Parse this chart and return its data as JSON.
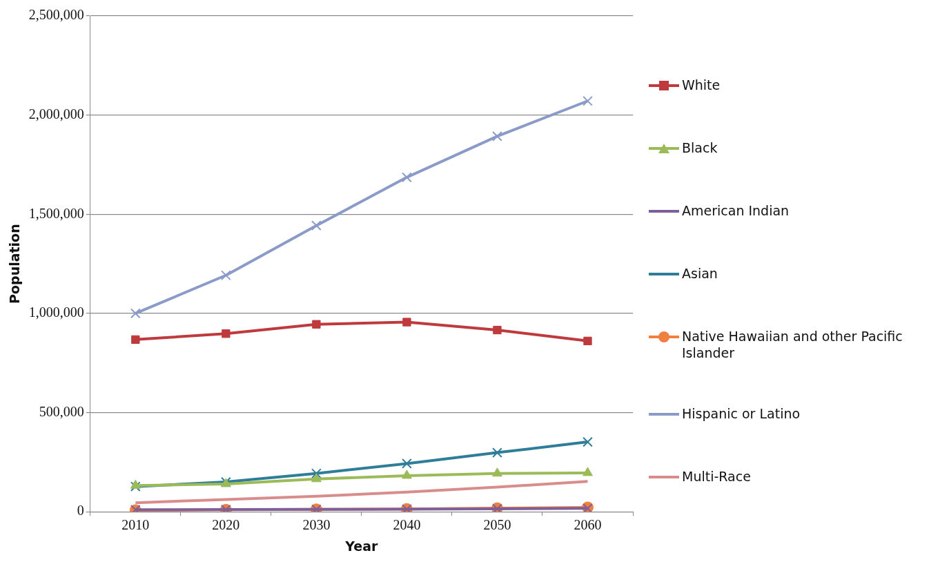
{
  "chart_data": {
    "type": "line",
    "xlabel": "Year",
    "ylabel": "Population",
    "categories": [
      "2010",
      "2020",
      "2030",
      "2040",
      "2050",
      "2060"
    ],
    "series": [
      {
        "name": "White",
        "color": "#be3a3c",
        "marker": "square",
        "values": [
          868000,
          898000,
          945000,
          956000,
          916000,
          861000
        ]
      },
      {
        "name": "Black",
        "color": "#9bbb59",
        "marker": "triangle",
        "values": [
          132000,
          140000,
          165000,
          182000,
          193000,
          196000
        ]
      },
      {
        "name": "American Indian",
        "color": "#7e5f9a",
        "marker": "cross",
        "values": [
          10000,
          11000,
          12000,
          13000,
          15000,
          17000
        ]
      },
      {
        "name": "Asian",
        "color": "#2f7d98",
        "marker": "cross",
        "values": [
          127000,
          150000,
          193000,
          243000,
          298000,
          352000
        ]
      },
      {
        "name": "Native Hawaiian and other Pacific Islander",
        "color": "#f08040",
        "marker": "circle",
        "values": [
          8000,
          10000,
          12000,
          14000,
          18000,
          22000
        ]
      },
      {
        "name": "Hispanic or Latino",
        "color": "#8b9bc8",
        "marker": "cross",
        "values": [
          1000000,
          1192000,
          1443000,
          1686000,
          1893000,
          2071000
        ]
      },
      {
        "name": "Multi-Race",
        "color": "#d98c8c",
        "marker": "none",
        "values": [
          45000,
          62000,
          78000,
          99000,
          124000,
          153000
        ]
      }
    ],
    "ylim": [
      0,
      2500000
    ],
    "yticks": [
      0,
      {
        "value": 500000,
        "label": "500,000"
      },
      {
        "value": 1000000,
        "label": "1,000,000"
      },
      {
        "value": 1500000,
        "label": "1,500,000"
      },
      {
        "value": 2000000,
        "label": "2,000,000"
      },
      {
        "value": 2500000,
        "label": "2,500,000"
      }
    ],
    "grid": "y",
    "legend": "right"
  }
}
